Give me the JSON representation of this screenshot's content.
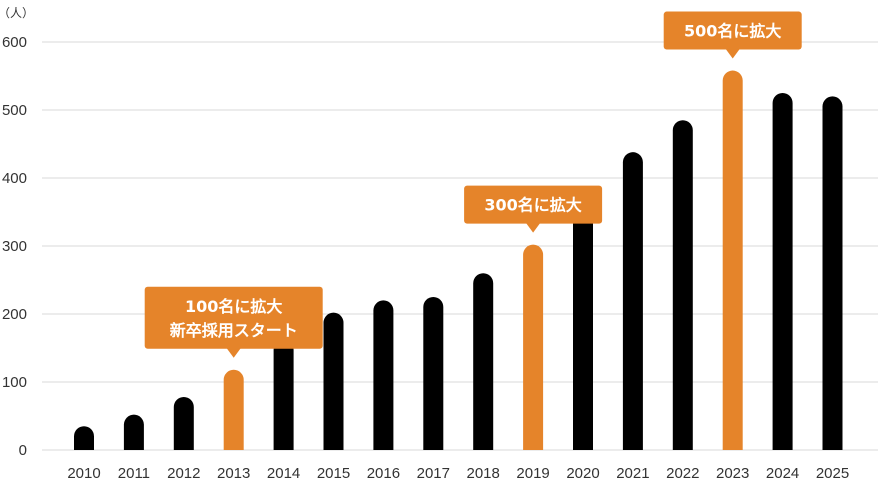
{
  "chart_data": {
    "type": "bar",
    "unit_label": "（人）",
    "categories": [
      "2010",
      "2011",
      "2012",
      "2013",
      "2014",
      "2015",
      "2016",
      "2017",
      "2018",
      "2019",
      "2020",
      "2021",
      "2022",
      "2023",
      "2024",
      "2025"
    ],
    "values": [
      35,
      52,
      78,
      118,
      162,
      202,
      220,
      225,
      260,
      302,
      370,
      438,
      485,
      558,
      525,
      520
    ],
    "highlight_categories": [
      "2013",
      "2019",
      "2023"
    ],
    "ylim": [
      0,
      600
    ],
    "yticks": [
      0,
      100,
      200,
      300,
      400,
      500,
      600
    ],
    "grid": true,
    "colors": {
      "bar": "#000000",
      "highlight": "#e5842a",
      "grid": "#d9d9d9"
    },
    "annotations": [
      {
        "category": "2013",
        "lines": [
          "100名に拡大",
          "新卒採用スタート"
        ]
      },
      {
        "category": "2019",
        "lines": [
          "300名に拡大"
        ]
      },
      {
        "category": "2023",
        "lines": [
          "500名に拡大"
        ]
      }
    ]
  }
}
